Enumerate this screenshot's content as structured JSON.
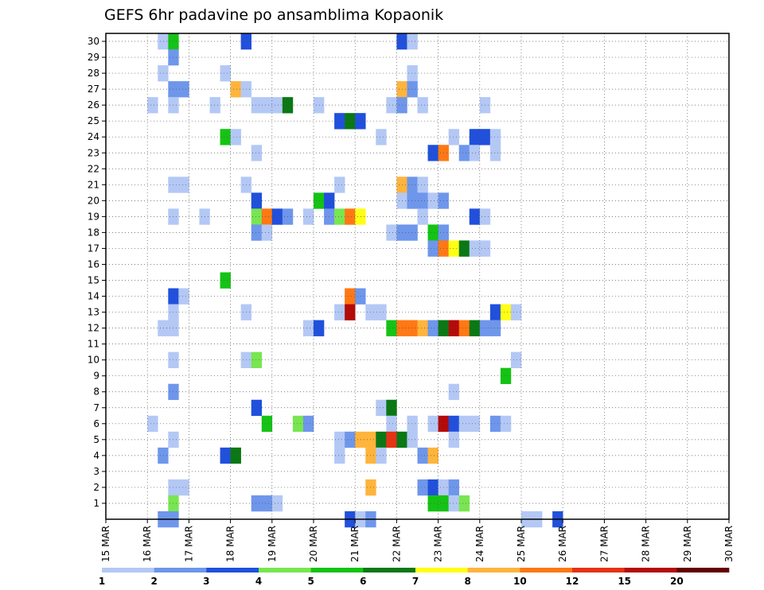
{
  "chart_data": {
    "type": "heatmap",
    "title": "GEFS 6hr padavine po ansamblima Kopaonik",
    "xlabel": "",
    "ylabel": "",
    "x_tick_labels": [
      "15 MAR",
      "16 MAR",
      "17 MAR",
      "18 MAR",
      "19 MAR",
      "20 MAR",
      "21 MAR",
      "22 MAR",
      "23 MAR",
      "24 MAR",
      "25 MAR",
      "26 MAR",
      "27 MAR",
      "28 MAR",
      "29 MAR",
      "30 MAR"
    ],
    "xlim": [
      0,
      60
    ],
    "ylim": [
      0,
      30
    ],
    "y_tick_labels": [
      "1",
      "2",
      "3",
      "4",
      "5",
      "6",
      "7",
      "8",
      "9",
      "10",
      "11",
      "12",
      "13",
      "14",
      "15",
      "16",
      "17",
      "18",
      "19",
      "20",
      "21",
      "22",
      "23",
      "24",
      "25",
      "26",
      "27",
      "28",
      "29",
      "30"
    ],
    "grid": true,
    "colorbar": {
      "tick_labels": [
        "1",
        "2",
        "3",
        "4",
        "5",
        "6",
        "7",
        "8",
        "10",
        "12",
        "15",
        "20"
      ],
      "colors": [
        "#b4c8f5",
        "#6e96eb",
        "#2050dc",
        "#78e650",
        "#14c314",
        "#0a7814",
        "#ffff14",
        "#ffb43c",
        "#ff7814",
        "#e63214",
        "#b40a0a",
        "#640000"
      ]
    },
    "cells": [
      {
        "t": 5,
        "m": 30,
        "v": 1.5
      },
      {
        "t": 6,
        "m": 30,
        "v": 5.5
      },
      {
        "t": 13,
        "m": 30,
        "v": 3.5
      },
      {
        "t": 28,
        "m": 30,
        "v": 3.5
      },
      {
        "t": 29,
        "m": 30,
        "v": 1.5
      },
      {
        "t": 6,
        "m": 29,
        "v": 2.5
      },
      {
        "t": 5,
        "m": 28,
        "v": 1.5
      },
      {
        "t": 11,
        "m": 28,
        "v": 1.5
      },
      {
        "t": 29,
        "m": 28,
        "v": 1.5
      },
      {
        "t": 6,
        "m": 27,
        "v": 2.5
      },
      {
        "t": 7,
        "m": 27,
        "v": 2.5
      },
      {
        "t": 12,
        "m": 27,
        "v": 9
      },
      {
        "t": 13,
        "m": 27,
        "v": 1.5
      },
      {
        "t": 28,
        "m": 27,
        "v": 9
      },
      {
        "t": 29,
        "m": 27,
        "v": 2.5
      },
      {
        "t": 4,
        "m": 26,
        "v": 1.5
      },
      {
        "t": 6,
        "m": 26,
        "v": 1.5
      },
      {
        "t": 10,
        "m": 26,
        "v": 1.5
      },
      {
        "t": 14,
        "m": 26,
        "v": 1.5
      },
      {
        "t": 15,
        "m": 26,
        "v": 1.5
      },
      {
        "t": 16,
        "m": 26,
        "v": 1.5
      },
      {
        "t": 17,
        "m": 26,
        "v": 6.5
      },
      {
        "t": 20,
        "m": 26,
        "v": 1.5
      },
      {
        "t": 27,
        "m": 26,
        "v": 1.5
      },
      {
        "t": 28,
        "m": 26,
        "v": 2.5
      },
      {
        "t": 30,
        "m": 26,
        "v": 1.5
      },
      {
        "t": 36,
        "m": 26,
        "v": 1.5
      },
      {
        "t": 22,
        "m": 25,
        "v": 3.5
      },
      {
        "t": 23,
        "m": 25,
        "v": 6.5
      },
      {
        "t": 24,
        "m": 25,
        "v": 3.5
      },
      {
        "t": 11,
        "m": 24,
        "v": 5.5
      },
      {
        "t": 12,
        "m": 24,
        "v": 1.5
      },
      {
        "t": 26,
        "m": 24,
        "v": 1.5
      },
      {
        "t": 33,
        "m": 24,
        "v": 1.5
      },
      {
        "t": 35,
        "m": 24,
        "v": 3.5
      },
      {
        "t": 36,
        "m": 24,
        "v": 3.5
      },
      {
        "t": 37,
        "m": 24,
        "v": 1.5
      },
      {
        "t": 14,
        "m": 23,
        "v": 1.5
      },
      {
        "t": 31,
        "m": 23,
        "v": 3.5
      },
      {
        "t": 32,
        "m": 23,
        "v": 11
      },
      {
        "t": 34,
        "m": 23,
        "v": 2.5
      },
      {
        "t": 35,
        "m": 23,
        "v": 1.5
      },
      {
        "t": 37,
        "m": 23,
        "v": 1.5
      },
      {
        "t": 6,
        "m": 21,
        "v": 1.5
      },
      {
        "t": 7,
        "m": 21,
        "v": 1.5
      },
      {
        "t": 13,
        "m": 21,
        "v": 1.5
      },
      {
        "t": 22,
        "m": 21,
        "v": 1.5
      },
      {
        "t": 28,
        "m": 21,
        "v": 9
      },
      {
        "t": 29,
        "m": 21,
        "v": 2.5
      },
      {
        "t": 30,
        "m": 21,
        "v": 1.5
      },
      {
        "t": 14,
        "m": 20,
        "v": 3.5
      },
      {
        "t": 20,
        "m": 20,
        "v": 5.5
      },
      {
        "t": 21,
        "m": 20,
        "v": 3.5
      },
      {
        "t": 28,
        "m": 20,
        "v": 1.5
      },
      {
        "t": 29,
        "m": 20,
        "v": 2.5
      },
      {
        "t": 30,
        "m": 20,
        "v": 2.5
      },
      {
        "t": 31,
        "m": 20,
        "v": 1.5
      },
      {
        "t": 32,
        "m": 20,
        "v": 2.5
      },
      {
        "t": 6,
        "m": 19,
        "v": 1.5
      },
      {
        "t": 9,
        "m": 19,
        "v": 1.5
      },
      {
        "t": 14,
        "m": 19,
        "v": 4.5
      },
      {
        "t": 15,
        "m": 19,
        "v": 11
      },
      {
        "t": 16,
        "m": 19,
        "v": 3.5
      },
      {
        "t": 17,
        "m": 19,
        "v": 2.5
      },
      {
        "t": 19,
        "m": 19,
        "v": 1.5
      },
      {
        "t": 21,
        "m": 19,
        "v": 2.5
      },
      {
        "t": 22,
        "m": 19,
        "v": 4.5
      },
      {
        "t": 23,
        "m": 19,
        "v": 11
      },
      {
        "t": 24,
        "m": 19,
        "v": 7.5
      },
      {
        "t": 30,
        "m": 19,
        "v": 1.5
      },
      {
        "t": 35,
        "m": 19,
        "v": 3.5
      },
      {
        "t": 36,
        "m": 19,
        "v": 1.5
      },
      {
        "t": 14,
        "m": 18,
        "v": 2.5
      },
      {
        "t": 15,
        "m": 18,
        "v": 1.5
      },
      {
        "t": 27,
        "m": 18,
        "v": 1.5
      },
      {
        "t": 28,
        "m": 18,
        "v": 2.5
      },
      {
        "t": 29,
        "m": 18,
        "v": 2.5
      },
      {
        "t": 31,
        "m": 18,
        "v": 5.5
      },
      {
        "t": 32,
        "m": 18,
        "v": 2.5
      },
      {
        "t": 31,
        "m": 17,
        "v": 2.5
      },
      {
        "t": 32,
        "m": 17,
        "v": 11
      },
      {
        "t": 33,
        "m": 17,
        "v": 7.5
      },
      {
        "t": 34,
        "m": 17,
        "v": 6.5
      },
      {
        "t": 35,
        "m": 17,
        "v": 1.5
      },
      {
        "t": 36,
        "m": 17,
        "v": 1.5
      },
      {
        "t": 11,
        "m": 15,
        "v": 5.5
      },
      {
        "t": 6,
        "m": 14,
        "v": 3.5
      },
      {
        "t": 7,
        "m": 14,
        "v": 1.5
      },
      {
        "t": 23,
        "m": 14,
        "v": 11
      },
      {
        "t": 24,
        "m": 14,
        "v": 2.5
      },
      {
        "t": 6,
        "m": 13,
        "v": 1.5
      },
      {
        "t": 13,
        "m": 13,
        "v": 1.5
      },
      {
        "t": 22,
        "m": 13,
        "v": 1.5
      },
      {
        "t": 23,
        "m": 13,
        "v": 17
      },
      {
        "t": 25,
        "m": 13,
        "v": 1.5
      },
      {
        "t": 26,
        "m": 13,
        "v": 1.5
      },
      {
        "t": 37,
        "m": 13,
        "v": 3.5
      },
      {
        "t": 38,
        "m": 13,
        "v": 7.5
      },
      {
        "t": 39,
        "m": 13,
        "v": 1.5
      },
      {
        "t": 5,
        "m": 12,
        "v": 1.5
      },
      {
        "t": 6,
        "m": 12,
        "v": 1.5
      },
      {
        "t": 19,
        "m": 12,
        "v": 1.5
      },
      {
        "t": 20,
        "m": 12,
        "v": 3.5
      },
      {
        "t": 27,
        "m": 12,
        "v": 5.5
      },
      {
        "t": 28,
        "m": 12,
        "v": 11
      },
      {
        "t": 29,
        "m": 12,
        "v": 11
      },
      {
        "t": 30,
        "m": 12,
        "v": 9
      },
      {
        "t": 31,
        "m": 12,
        "v": 2.5
      },
      {
        "t": 32,
        "m": 12,
        "v": 6.5
      },
      {
        "t": 33,
        "m": 12,
        "v": 17
      },
      {
        "t": 34,
        "m": 12,
        "v": 11
      },
      {
        "t": 35,
        "m": 12,
        "v": 6.5
      },
      {
        "t": 36,
        "m": 12,
        "v": 2.5
      },
      {
        "t": 37,
        "m": 12,
        "v": 2.5
      },
      {
        "t": 6,
        "m": 10,
        "v": 1.5
      },
      {
        "t": 13,
        "m": 10,
        "v": 1.5
      },
      {
        "t": 14,
        "m": 10,
        "v": 4.5
      },
      {
        "t": 39,
        "m": 10,
        "v": 1.5
      },
      {
        "t": 38,
        "m": 9,
        "v": 5.5
      },
      {
        "t": 6,
        "m": 8,
        "v": 2.5
      },
      {
        "t": 33,
        "m": 8,
        "v": 1.5
      },
      {
        "t": 14,
        "m": 7,
        "v": 3.5
      },
      {
        "t": 26,
        "m": 7,
        "v": 1.5
      },
      {
        "t": 27,
        "m": 7,
        "v": 6.5
      },
      {
        "t": 4,
        "m": 6,
        "v": 1.5
      },
      {
        "t": 15,
        "m": 6,
        "v": 5.5
      },
      {
        "t": 18,
        "m": 6,
        "v": 4.5
      },
      {
        "t": 19,
        "m": 6,
        "v": 2.5
      },
      {
        "t": 27,
        "m": 6,
        "v": 1.5
      },
      {
        "t": 29,
        "m": 6,
        "v": 1.5
      },
      {
        "t": 31,
        "m": 6,
        "v": 1.5
      },
      {
        "t": 32,
        "m": 6,
        "v": 17
      },
      {
        "t": 33,
        "m": 6,
        "v": 3.5
      },
      {
        "t": 34,
        "m": 6,
        "v": 1.5
      },
      {
        "t": 35,
        "m": 6,
        "v": 1.5
      },
      {
        "t": 37,
        "m": 6,
        "v": 2.5
      },
      {
        "t": 38,
        "m": 6,
        "v": 1.5
      },
      {
        "t": 6,
        "m": 5,
        "v": 1.5
      },
      {
        "t": 22,
        "m": 5,
        "v": 1.5
      },
      {
        "t": 23,
        "m": 5,
        "v": 2.5
      },
      {
        "t": 24,
        "m": 5,
        "v": 9
      },
      {
        "t": 25,
        "m": 5,
        "v": 9
      },
      {
        "t": 26,
        "m": 5,
        "v": 6.5
      },
      {
        "t": 27,
        "m": 5,
        "v": 13
      },
      {
        "t": 28,
        "m": 5,
        "v": 6.5
      },
      {
        "t": 29,
        "m": 5,
        "v": 1.5
      },
      {
        "t": 33,
        "m": 5,
        "v": 1.5
      },
      {
        "t": 5,
        "m": 4,
        "v": 2.5
      },
      {
        "t": 11,
        "m": 4,
        "v": 3.5
      },
      {
        "t": 12,
        "m": 4,
        "v": 6.5
      },
      {
        "t": 22,
        "m": 4,
        "v": 1.5
      },
      {
        "t": 25,
        "m": 4,
        "v": 9
      },
      {
        "t": 26,
        "m": 4,
        "v": 1.5
      },
      {
        "t": 30,
        "m": 4,
        "v": 2.5
      },
      {
        "t": 31,
        "m": 4,
        "v": 9
      },
      {
        "t": 6,
        "m": 2,
        "v": 1.5
      },
      {
        "t": 7,
        "m": 2,
        "v": 1.5
      },
      {
        "t": 25,
        "m": 2,
        "v": 9
      },
      {
        "t": 30,
        "m": 2,
        "v": 2.5
      },
      {
        "t": 31,
        "m": 2,
        "v": 3.5
      },
      {
        "t": 32,
        "m": 2,
        "v": 1.5
      },
      {
        "t": 33,
        "m": 2,
        "v": 2.5
      },
      {
        "t": 6,
        "m": 1,
        "v": 4.5
      },
      {
        "t": 14,
        "m": 1,
        "v": 2.5
      },
      {
        "t": 15,
        "m": 1,
        "v": 2.5
      },
      {
        "t": 16,
        "m": 1,
        "v": 1.5
      },
      {
        "t": 31,
        "m": 1,
        "v": 5.5
      },
      {
        "t": 32,
        "m": 1,
        "v": 5.5
      },
      {
        "t": 33,
        "m": 1,
        "v": 1.5
      },
      {
        "t": 34,
        "m": 1,
        "v": 4.5
      },
      {
        "t": 5,
        "m": 0,
        "v": 2.5
      },
      {
        "t": 6,
        "m": 0,
        "v": 2.5
      },
      {
        "t": 23,
        "m": 0,
        "v": 3.5
      },
      {
        "t": 24,
        "m": 0,
        "v": 1.5
      },
      {
        "t": 25,
        "m": 0,
        "v": 2.5
      },
      {
        "t": 40,
        "m": 0,
        "v": 1.5
      },
      {
        "t": 41,
        "m": 0,
        "v": 1.5
      },
      {
        "t": 43,
        "m": 0,
        "v": 3.5
      }
    ]
  }
}
